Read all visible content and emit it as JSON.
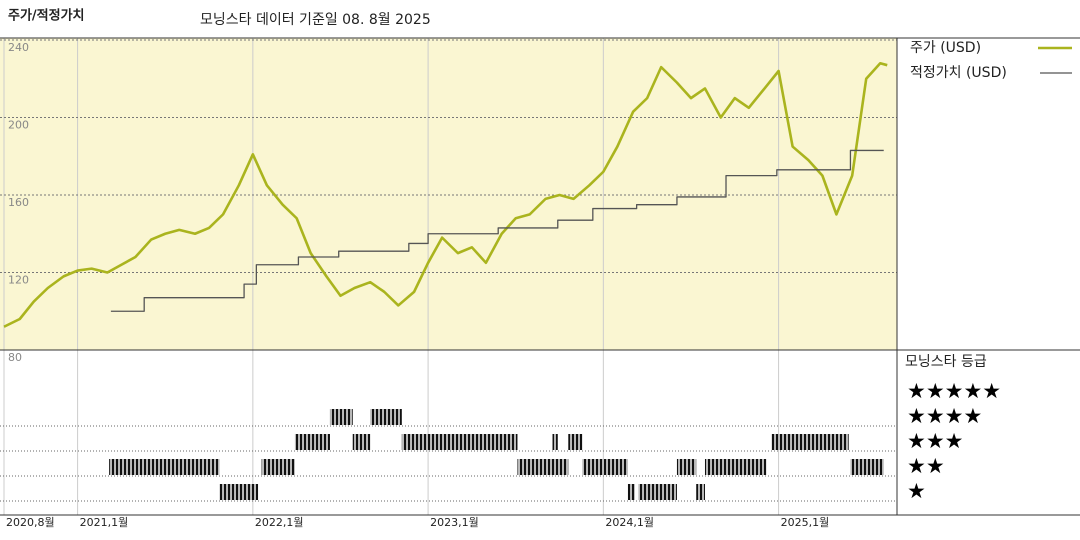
{
  "chart_data": {
    "type": "line",
    "title": "주가/적정가치",
    "subtitle": "모닝스타 데이터 기준일 08. 8월 2025",
    "background": "#faf6d2",
    "xlim": [
      2020.58,
      2025.67
    ],
    "xticks": [
      {
        "value": 2020.58,
        "label": "2020,8월"
      },
      {
        "value": 2021,
        "label": "2021,1월"
      },
      {
        "value": 2022,
        "label": "2022,1월"
      },
      {
        "value": 2023,
        "label": "2023,1월"
      },
      {
        "value": 2024,
        "label": "2024,1월"
      },
      {
        "value": 2025,
        "label": "2025,1월"
      }
    ],
    "ylim": [
      80,
      240
    ],
    "yticks": [
      80,
      120,
      160,
      200,
      240
    ],
    "grid": true,
    "series": [
      {
        "name": "주가 (USD)",
        "color": "#aab41e",
        "x": [
          2020.58,
          2020.67,
          2020.75,
          2020.83,
          2020.92,
          2021.0,
          2021.08,
          2021.17,
          2021.25,
          2021.33,
          2021.42,
          2021.5,
          2021.58,
          2021.67,
          2021.75,
          2021.83,
          2021.92,
          2022.0,
          2022.08,
          2022.17,
          2022.25,
          2022.33,
          2022.42,
          2022.5,
          2022.58,
          2022.67,
          2022.75,
          2022.83,
          2022.92,
          2023.0,
          2023.08,
          2023.17,
          2023.25,
          2023.33,
          2023.42,
          2023.5,
          2023.58,
          2023.67,
          2023.75,
          2023.83,
          2023.92,
          2024.0,
          2024.08,
          2024.17,
          2024.25,
          2024.33,
          2024.42,
          2024.5,
          2024.58,
          2024.67,
          2024.75,
          2024.83,
          2024.92,
          2025.0,
          2025.08,
          2025.17,
          2025.25,
          2025.33,
          2025.42,
          2025.5,
          2025.58,
          2025.62
        ],
        "values": [
          92,
          96,
          105,
          112,
          118,
          121,
          122,
          120,
          124,
          128,
          137,
          140,
          142,
          140,
          143,
          150,
          165,
          181,
          165,
          155,
          148,
          130,
          118,
          108,
          112,
          115,
          110,
          103,
          110,
          125,
          138,
          130,
          133,
          125,
          140,
          148,
          150,
          158,
          160,
          158,
          165,
          172,
          185,
          203,
          210,
          226,
          218,
          210,
          215,
          200,
          210,
          205,
          215,
          224,
          185,
          178,
          170,
          150,
          170,
          220,
          228,
          227
        ]
      },
      {
        "name": "적정가치 (USD)",
        "color": "#555555",
        "step": true,
        "x": [
          2021.19,
          2021.38,
          2021.95,
          2022.02,
          2022.26,
          2022.49,
          2022.89,
          2023.0,
          2023.4,
          2023.74,
          2023.94,
          2024.19,
          2024.42,
          2024.7,
          2024.99,
          2025.41,
          2025.6
        ],
        "values": [
          100,
          107,
          114,
          124,
          128,
          131,
          135,
          140,
          143,
          147,
          153,
          155,
          159,
          170,
          173,
          183,
          183
        ]
      }
    ],
    "ratings": {
      "title": "모닝스타 등급",
      "levels": [
        5,
        4,
        3,
        2,
        1
      ],
      "labels": [
        "★★★★★",
        "★★★★",
        "★★★",
        "★★",
        "★"
      ],
      "periods": [
        {
          "start": 2021.18,
          "end": 2021.81,
          "stars": 2
        },
        {
          "start": 2021.81,
          "end": 2022.03,
          "stars": 1
        },
        {
          "start": 2022.05,
          "end": 2022.24,
          "stars": 2
        },
        {
          "start": 2022.24,
          "end": 2022.44,
          "stars": 3
        },
        {
          "start": 2022.44,
          "end": 2022.57,
          "stars": 4
        },
        {
          "start": 2022.57,
          "end": 2022.67,
          "stars": 3
        },
        {
          "start": 2022.67,
          "end": 2022.85,
          "stars": 4
        },
        {
          "start": 2022.85,
          "end": 2023.51,
          "stars": 3
        },
        {
          "start": 2023.51,
          "end": 2023.8,
          "stars": 2
        },
        {
          "start": 2023.71,
          "end": 2023.74,
          "stars": 3
        },
        {
          "start": 2023.8,
          "end": 2023.88,
          "stars": 3
        },
        {
          "start": 2023.88,
          "end": 2024.14,
          "stars": 2
        },
        {
          "start": 2024.14,
          "end": 2024.18,
          "stars": 1
        },
        {
          "start": 2024.2,
          "end": 2024.42,
          "stars": 1
        },
        {
          "start": 2024.42,
          "end": 2024.53,
          "stars": 2
        },
        {
          "start": 2024.53,
          "end": 2024.58,
          "stars": 1
        },
        {
          "start": 2024.58,
          "end": 2024.93,
          "stars": 2
        },
        {
          "start": 2024.96,
          "end": 2025.4,
          "stars": 3
        },
        {
          "start": 2025.41,
          "end": 2025.6,
          "stars": 2
        }
      ]
    }
  }
}
